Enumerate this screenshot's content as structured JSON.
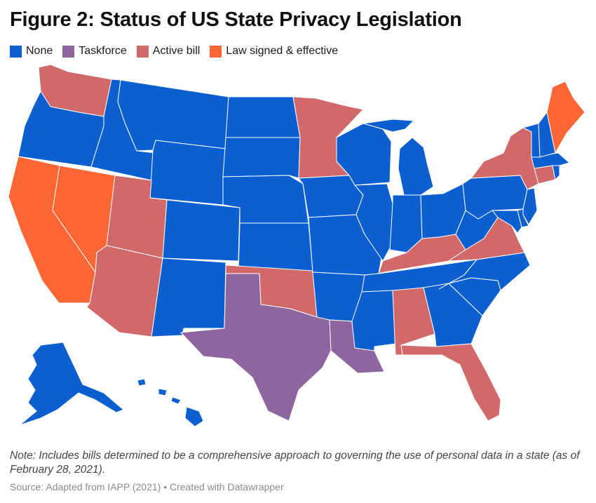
{
  "title": "Figure 2: Status of US State Privacy Legislation",
  "legend": [
    {
      "key": "none",
      "label": "None",
      "color": "#0b5fd0"
    },
    {
      "key": "taskforce",
      "label": "Taskforce",
      "color": "#8e659e"
    },
    {
      "key": "active",
      "label": "Active bill",
      "color": "#d1696a"
    },
    {
      "key": "signed",
      "label": "Law signed & effective",
      "color": "#ff6633"
    }
  ],
  "states": {
    "signed": [
      "California",
      "Nevada",
      "Maine"
    ],
    "taskforce": [
      "Texas",
      "Louisiana"
    ],
    "active": [
      "Washington",
      "Utah",
      "Arizona",
      "Oklahoma",
      "Minnesota",
      "Kentucky",
      "Virginia",
      "Alabama",
      "Florida",
      "New York",
      "Connecticut"
    ],
    "none": [
      "Oregon",
      "Idaho",
      "Montana",
      "Wyoming",
      "North Dakota",
      "South Dakota",
      "Nebraska",
      "Kansas",
      "Colorado",
      "New Mexico",
      "Iowa",
      "Missouri",
      "Arkansas",
      "Mississippi",
      "Wisconsin",
      "Illinois",
      "Michigan",
      "Indiana",
      "Ohio",
      "Tennessee",
      "Georgia",
      "South Carolina",
      "North Carolina",
      "West Virginia",
      "Pennsylvania",
      "New Jersey",
      "Delaware",
      "Maryland",
      "Vermont",
      "New Hampshire",
      "Massachusetts",
      "Rhode Island",
      "Alaska",
      "Hawaii"
    ]
  },
  "note": "Note: Includes bills determined to be a comprehensive approach to governing the use of personal data in a state (as of February 28, 2021).",
  "source": "Source: Adapted from IAPP (2021) • Created with Datawrapper"
}
